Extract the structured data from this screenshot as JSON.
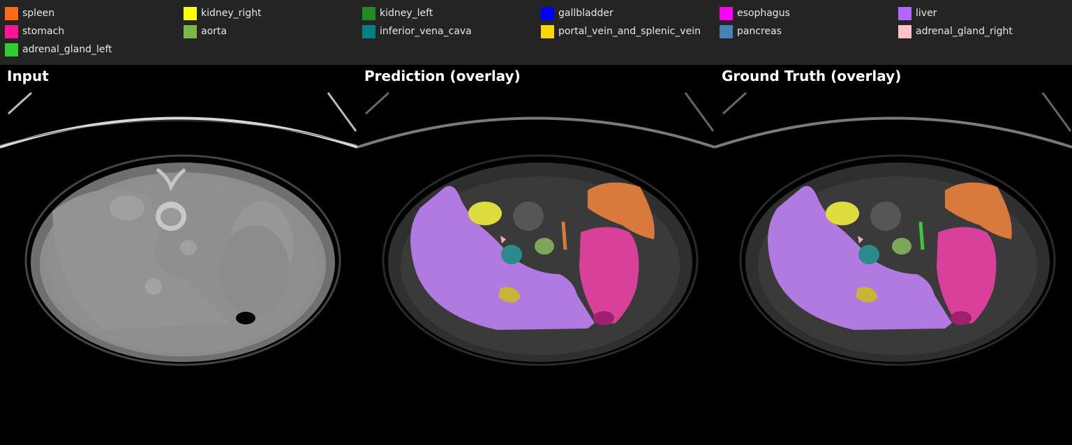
{
  "legend": [
    {
      "label": "spleen",
      "color": "#ff6a13"
    },
    {
      "label": "kidney_right",
      "color": "#ffff00"
    },
    {
      "label": "kidney_left",
      "color": "#228b22"
    },
    {
      "label": "gallbladder",
      "color": "#0000ff"
    },
    {
      "label": "esophagus",
      "color": "#ff00ff"
    },
    {
      "label": "liver",
      "color": "#b366ff"
    },
    {
      "label": "stomach",
      "color": "#ff1493"
    },
    {
      "label": "aorta",
      "color": "#7ab648"
    },
    {
      "label": "inferior_vena_cava",
      "color": "#008080"
    },
    {
      "label": "portal_vein_and_splenic_vein",
      "color": "#ffd700"
    },
    {
      "label": "pancreas",
      "color": "#4682b4"
    },
    {
      "label": "adrenal_gland_right",
      "color": "#ffc0cb"
    },
    {
      "label": "adrenal_gland_left",
      "color": "#32cd32"
    }
  ],
  "panels": [
    {
      "title": "Input"
    },
    {
      "title": "Prediction (overlay)"
    },
    {
      "title": "Ground Truth (overlay)"
    }
  ]
}
